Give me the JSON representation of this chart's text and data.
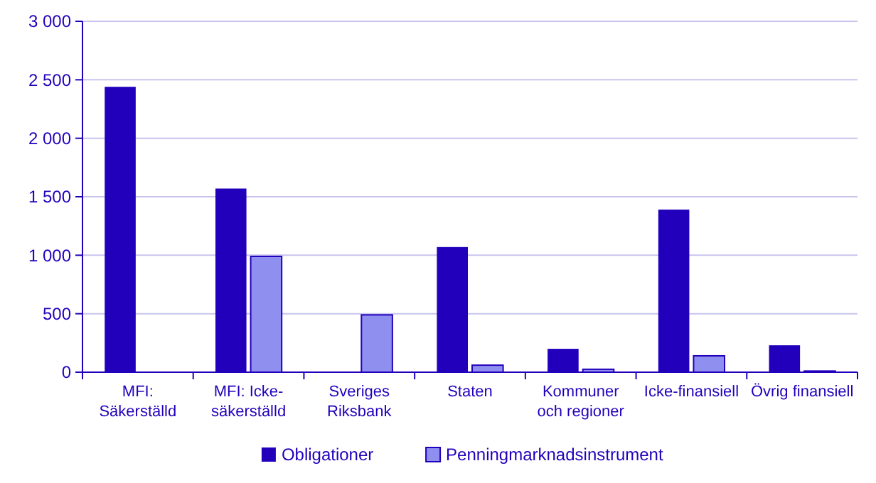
{
  "chart_data": {
    "type": "bar",
    "categories": [
      "MFI:\nSäkerställd",
      "MFI: Icke-\nsäkerställd",
      "Sveriges\nRiksbank",
      "Staten",
      "Kommuner\noch regioner",
      "Icke-finansiell",
      "Övrig finansiell"
    ],
    "series": [
      {
        "name": "Obligationer",
        "color": "#2200bb",
        "values": [
          2440,
          1570,
          0,
          1070,
          200,
          1390,
          230
        ]
      },
      {
        "name": "Penningmarknadsinstrument",
        "color": "#8f8ff0",
        "values": [
          0,
          990,
          490,
          60,
          25,
          140,
          10
        ]
      }
    ],
    "ylim": [
      0,
      3000
    ],
    "yticks": [
      {
        "value": 0,
        "label": "0"
      },
      {
        "value": 500,
        "label": "500"
      },
      {
        "value": 1000,
        "label": "1 000"
      },
      {
        "value": 1500,
        "label": "1 500"
      },
      {
        "value": 2000,
        "label": "2 000"
      },
      {
        "value": 2500,
        "label": "2 500"
      },
      {
        "value": 3000,
        "label": "3 000"
      }
    ],
    "grid": "y",
    "legend": "bottom"
  }
}
